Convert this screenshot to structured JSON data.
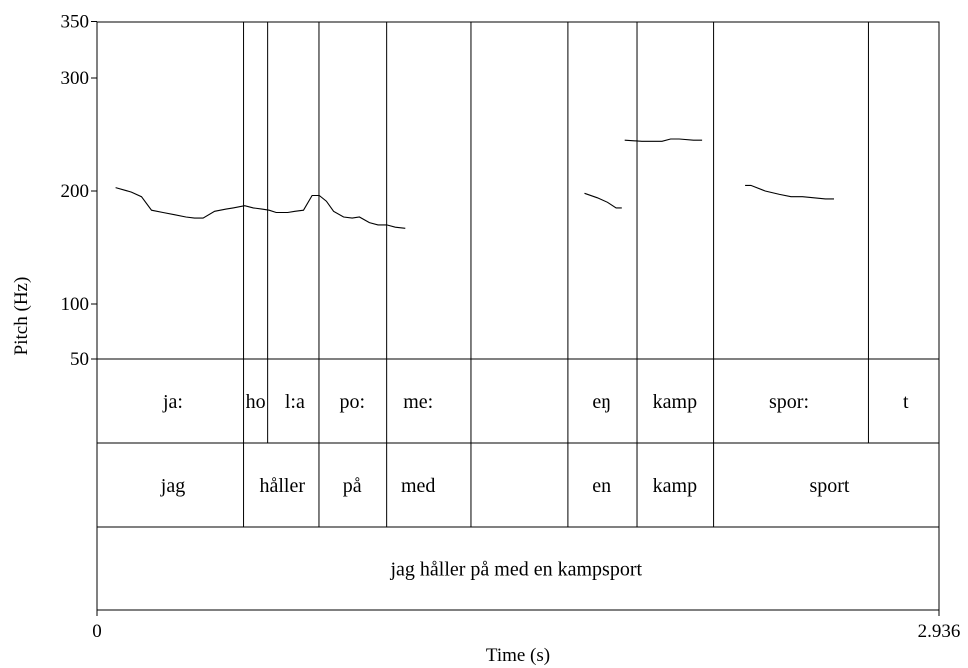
{
  "chart_data": {
    "type": "line",
    "xlabel": "Time (s)",
    "ylabel": "Pitch (Hz)",
    "x_ticks": [
      "0",
      "2.936"
    ],
    "xlim": [
      0,
      2.936
    ],
    "y_ticks": [
      "50",
      "100",
      "200",
      "300",
      "350"
    ],
    "y_tick_values": [
      50,
      100,
      200,
      300,
      350
    ],
    "ylim": [
      50,
      350
    ],
    "series": [
      {
        "values": [
          [
            [
              0.065,
              203
            ],
            [
              0.12,
              199
            ],
            [
              0.155,
              195
            ],
            [
              0.19,
              183
            ],
            [
              0.23,
              181
            ],
            [
              0.27,
              179
            ],
            [
              0.31,
              177
            ],
            [
              0.34,
              176
            ],
            [
              0.37,
              176
            ],
            [
              0.41,
              182
            ],
            [
              0.45,
              184
            ],
            [
              0.475,
              185
            ],
            [
              0.515,
              187
            ],
            [
              0.545,
              185
            ],
            [
              0.575,
              184
            ],
            [
              0.6,
              183
            ],
            [
              0.625,
              181
            ],
            [
              0.665,
              181
            ],
            [
              0.69,
              182
            ],
            [
              0.72,
              183
            ],
            [
              0.75,
              196
            ],
            [
              0.775,
              196
            ],
            [
              0.8,
              191
            ],
            [
              0.825,
              182
            ],
            [
              0.86,
              177
            ],
            [
              0.89,
              176
            ],
            [
              0.915,
              177
            ],
            [
              0.95,
              172
            ],
            [
              0.98,
              170
            ],
            [
              1.01,
              170
            ],
            [
              1.04,
              168
            ],
            [
              1.075,
              167
            ]
          ],
          [
            [
              1.7,
              198
            ],
            [
              1.745,
              194
            ],
            [
              1.78,
              190
            ],
            [
              1.81,
              185
            ],
            [
              1.83,
              185
            ]
          ],
          [
            [
              1.84,
              245
            ],
            [
              1.9,
              244
            ],
            [
              1.97,
              244
            ],
            [
              2.0,
              246
            ],
            [
              2.03,
              246
            ],
            [
              2.08,
              245
            ],
            [
              2.11,
              245
            ]
          ],
          [
            [
              2.26,
              205
            ],
            [
              2.28,
              205
            ],
            [
              2.33,
              200
            ],
            [
              2.38,
              197
            ],
            [
              2.42,
              195
            ],
            [
              2.46,
              195
            ],
            [
              2.5,
              194
            ],
            [
              2.54,
              193
            ],
            [
              2.57,
              193
            ]
          ]
        ]
      }
    ],
    "tiers": [
      {
        "boundaries": [
          0.511,
          0.595,
          0.774,
          1.01,
          1.304,
          1.642,
          1.883,
          2.15,
          2.69
        ],
        "labels": [
          {
            "text": "ja:",
            "x": 0.265
          },
          {
            "text": "ho",
            "x": 0.553
          },
          {
            "text": "l:a",
            "x": 0.69
          },
          {
            "text": "po:",
            "x": 0.89
          },
          {
            "text": "me:",
            "x": 1.12
          },
          {
            "text": "eŋ",
            "x": 1.76
          },
          {
            "text": "kamp",
            "x": 2.015
          },
          {
            "text": "spor:",
            "x": 2.413
          },
          {
            "text": "t",
            "x": 2.82
          }
        ]
      },
      {
        "boundaries": [
          0.511,
          0.774,
          1.01,
          1.304,
          1.642,
          1.883,
          2.15
        ],
        "labels": [
          {
            "text": "jag",
            "x": 0.265
          },
          {
            "text": "håller",
            "x": 0.646
          },
          {
            "text": "på",
            "x": 0.89
          },
          {
            "text": "med",
            "x": 1.12
          },
          {
            "text": "en",
            "x": 1.76
          },
          {
            "text": "kamp",
            "x": 2.015
          },
          {
            "text": "sport",
            "x": 2.554
          }
        ]
      },
      {
        "boundaries": [],
        "labels": [
          {
            "text": "jag håller på med en kampsport",
            "x": 1.462
          }
        ]
      }
    ]
  }
}
